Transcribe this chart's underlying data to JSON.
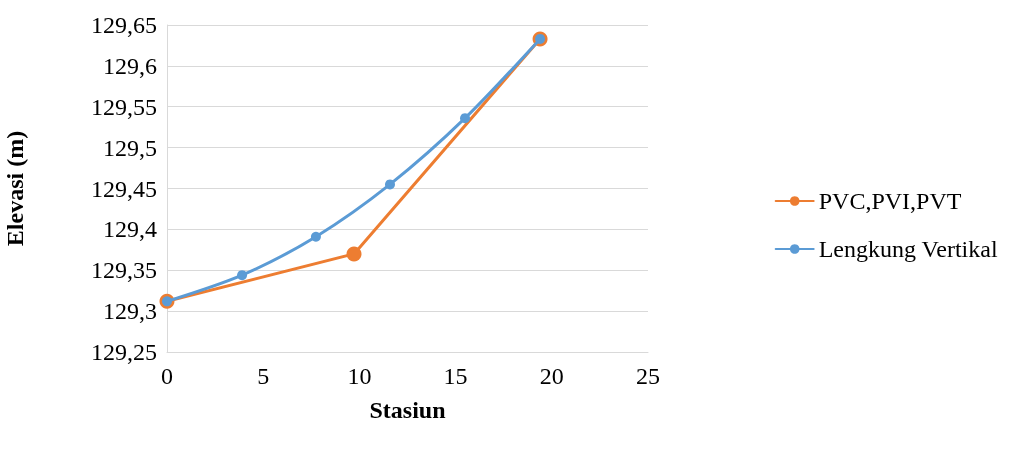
{
  "chart_data": {
    "type": "line",
    "xlabel": "Stasiun",
    "ylabel": "Elevasi (m)",
    "xlim": [
      0,
      25
    ],
    "xticks": [
      0,
      5,
      10,
      15,
      20,
      25
    ],
    "ylim": [
      129.25,
      129.65
    ],
    "yticks": [
      {
        "value": 129.25,
        "label": "129,25"
      },
      {
        "value": 129.3,
        "label": "129,3"
      },
      {
        "value": 129.35,
        "label": "129,35"
      },
      {
        "value": 129.4,
        "label": "129,4"
      },
      {
        "value": 129.45,
        "label": "129,45"
      },
      {
        "value": 129.5,
        "label": "129,5"
      },
      {
        "value": 129.55,
        "label": "129,55"
      },
      {
        "value": 129.6,
        "label": "129,6"
      },
      {
        "value": 129.65,
        "label": "129,65"
      }
    ],
    "grid": "y",
    "legend": "right",
    "marker": "circle",
    "line_style": "solid",
    "series": [
      {
        "name": "PVC,PVI,PVT",
        "color": "#ed7d31",
        "x": [
          0,
          9.72,
          19.39
        ],
        "values": [
          129.312,
          129.37,
          129.633
        ]
      },
      {
        "name": "Lengkung Vertikal",
        "color": "#5b9bd5",
        "x": [
          0,
          3.9,
          7.74,
          11.59,
          15.49,
          19.39
        ],
        "values": [
          129.312,
          129.344,
          129.391,
          129.455,
          129.536,
          129.633
        ]
      }
    ]
  }
}
